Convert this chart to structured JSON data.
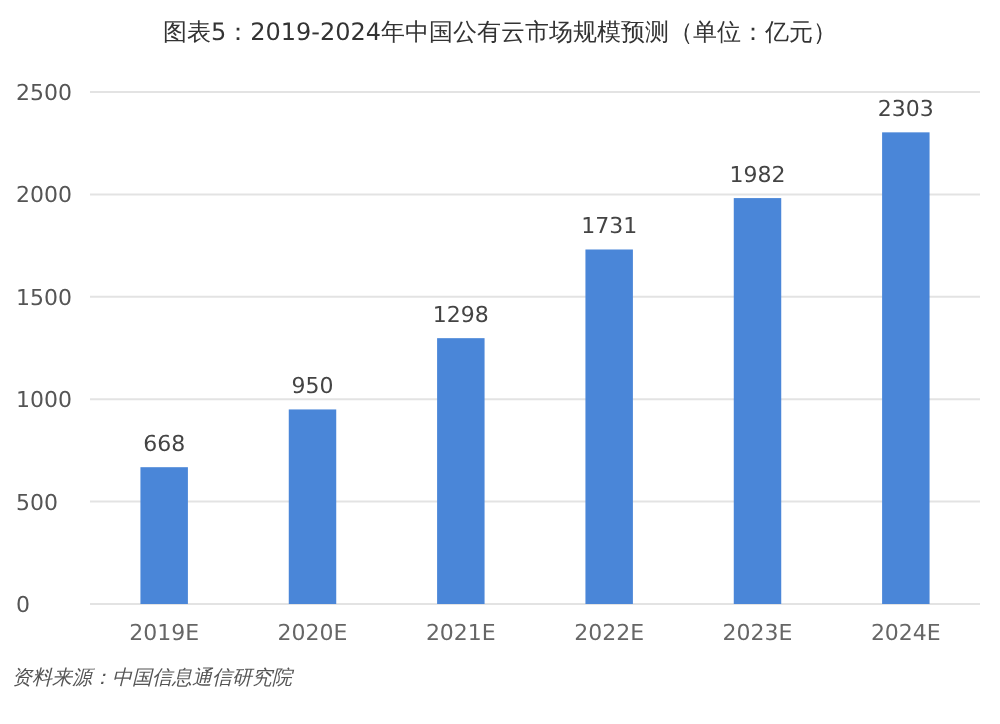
{
  "chart_data": {
    "type": "bar",
    "title": "图表5：2019-2024年中国公有云市场规模预测（单位：亿元）",
    "categories": [
      "2019E",
      "2020E",
      "2021E",
      "2022E",
      "2023E",
      "2024E"
    ],
    "values": [
      668,
      950,
      1298,
      1731,
      1982,
      2303
    ],
    "color": "#4a86d8",
    "ylim": [
      0,
      2500
    ],
    "yticks": [
      0,
      500,
      1000,
      1500,
      2000,
      2500
    ],
    "grid": "y",
    "data_labels": true,
    "annotations": [
      "资料来源：中国信息通信研究院"
    ]
  }
}
